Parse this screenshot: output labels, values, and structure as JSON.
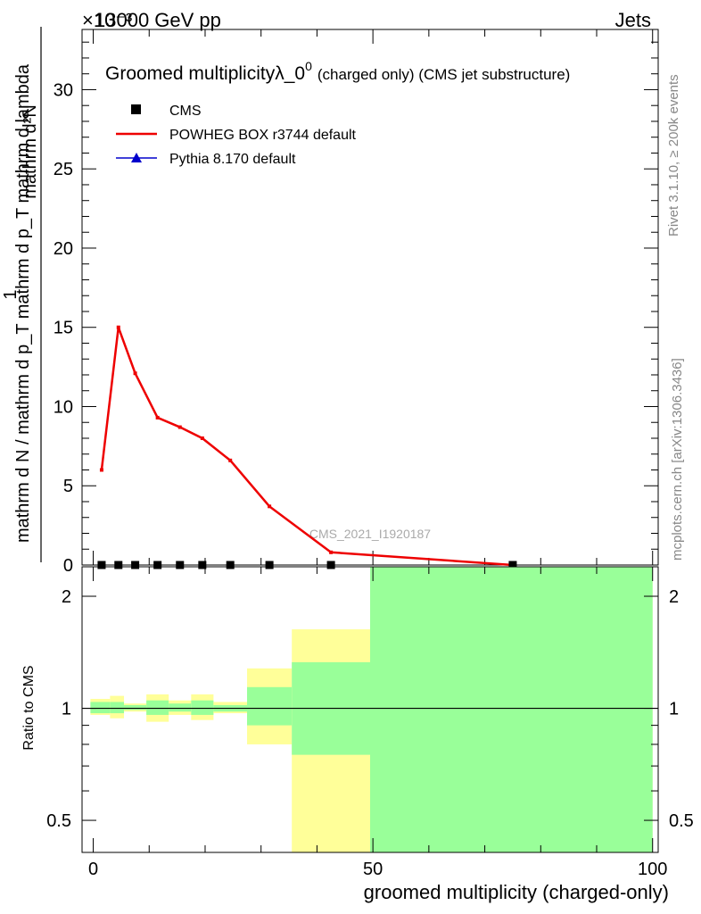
{
  "header": {
    "energy": "13000 GeV pp",
    "process": "Jets",
    "exponent_marker": "×10⁻³"
  },
  "title": {
    "main": "Groomed multiplicityλ_0",
    "superscript": "0",
    "suffix": "(charged only) (CMS jet substructure)"
  },
  "legend": {
    "items": [
      {
        "label": "CMS",
        "marker": "square",
        "color": "#000000"
      },
      {
        "label": "POWHEG BOX r3744 default",
        "marker": "line",
        "color": "#ee0000"
      },
      {
        "label": "Pythia 8.170 default",
        "marker": "triangle",
        "color": "#0000cc"
      }
    ]
  },
  "axes": {
    "y_main_label_numerator": "mathrm d²N",
    "y_main_label_denominator": "mathrm d N / mathrm d p_T mathrm d p_T mathrm d lambda",
    "y_main_label_one": "1",
    "y_ratio_label": "Ratio to CMS",
    "x_label": "groomed multiplicity (charged-only)"
  },
  "side_text": {
    "rivet": "Rivet 3.1.10, ≥ 200k events",
    "mcplots": "mcplots.cern.ch [arXiv:1306.3436]"
  },
  "watermark": "CMS_2021_I1920187",
  "chart_data": [
    {
      "type": "line",
      "panel": "main",
      "xlim": [
        -2,
        101
      ],
      "ylim": [
        0,
        33.8
      ],
      "y_scale_note": "×10⁻³",
      "y_ticks": [
        0,
        5,
        10,
        15,
        20,
        25,
        30
      ],
      "x_ticks": [
        0,
        50,
        100
      ],
      "series": [
        {
          "name": "POWHEG BOX r3744 default",
          "color": "#ee0000",
          "x": [
            1.5,
            4.5,
            7.5,
            11.5,
            15.5,
            19.5,
            24.5,
            31.5,
            42.5,
            75
          ],
          "y": [
            6.0,
            15.0,
            12.1,
            9.3,
            8.7,
            8.0,
            6.6,
            3.7,
            0.8,
            0.0
          ]
        },
        {
          "name": "CMS",
          "color": "#000000",
          "x": [
            1.5,
            4.5,
            7.5,
            11.5,
            15.5,
            19.5,
            24.5,
            31.5,
            42.5,
            75
          ],
          "y": [
            0.0,
            0.0,
            0.0,
            0.0,
            0.0,
            0.0,
            0.0,
            0.0,
            0.0,
            0.0
          ]
        }
      ]
    },
    {
      "type": "area",
      "panel": "ratio",
      "ylabel": "Ratio to CMS",
      "y_scale": "log",
      "ylim": [
        0.41,
        2.4
      ],
      "y_ticks": [
        0.5,
        1,
        2
      ],
      "x_ticks": [
        0,
        50,
        100
      ],
      "reference": 1,
      "bands": [
        {
          "x0": -0.5,
          "x1": 3,
          "yellow": [
            0.96,
            1.06
          ],
          "green": [
            0.97,
            1.04
          ]
        },
        {
          "x0": 3,
          "x1": 5.5,
          "yellow": [
            0.94,
            1.08
          ],
          "green": [
            0.97,
            1.04
          ]
        },
        {
          "x0": 5.5,
          "x1": 9.5,
          "yellow": [
            0.98,
            1.03
          ],
          "green": [
            0.99,
            1.02
          ]
        },
        {
          "x0": 9.5,
          "x1": 13.5,
          "yellow": [
            0.92,
            1.09
          ],
          "green": [
            0.96,
            1.05
          ]
        },
        {
          "x0": 13.5,
          "x1": 17.5,
          "yellow": [
            0.96,
            1.05
          ],
          "green": [
            0.98,
            1.03
          ]
        },
        {
          "x0": 17.5,
          "x1": 21.5,
          "yellow": [
            0.93,
            1.09
          ],
          "green": [
            0.96,
            1.05
          ]
        },
        {
          "x0": 21.5,
          "x1": 27.5,
          "yellow": [
            0.97,
            1.04
          ],
          "green": [
            0.98,
            1.02
          ]
        },
        {
          "x0": 27.5,
          "x1": 35.5,
          "yellow": [
            0.8,
            1.28
          ],
          "green": [
            0.9,
            1.14
          ]
        },
        {
          "x0": 35.5,
          "x1": 49.5,
          "yellow": [
            0.38,
            1.63
          ],
          "green": [
            0.75,
            1.33
          ]
        },
        {
          "x0": 49.5,
          "x1": 100,
          "yellow": [
            0.38,
            2.4
          ],
          "green": [
            0.38,
            2.4
          ]
        }
      ]
    }
  ],
  "colors": {
    "yellow_band": "#ffff99",
    "green_band": "#99ff99",
    "powheg": "#ee0000",
    "pythia": "#0000cc",
    "cms": "#000000"
  }
}
